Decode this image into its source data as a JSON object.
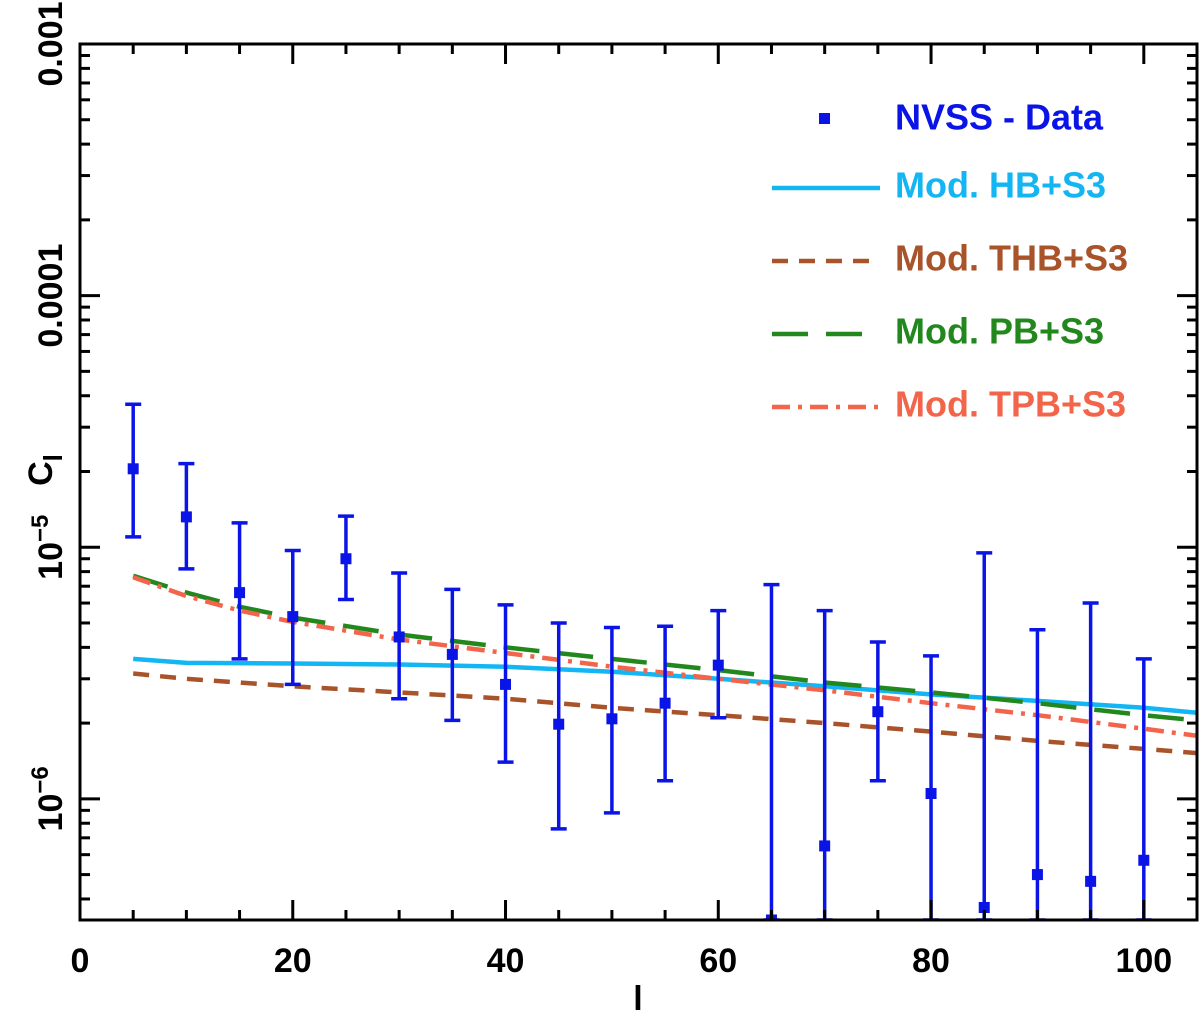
{
  "chart_data": {
    "type": "scatter",
    "title": "",
    "xlabel": "l",
    "ylabel": "C_l",
    "ylabel_main": "C",
    "ylabel_sub": "l",
    "xlim": [
      0,
      105
    ],
    "ylim": [
      3.3e-07,
      0.001
    ],
    "yscale": "log",
    "x_ticks": [
      0,
      20,
      40,
      60,
      80,
      100
    ],
    "x_tick_labels": [
      "0",
      "20",
      "40",
      "60",
      "80",
      "100"
    ],
    "y_ticks": [
      1e-06,
      1e-05,
      0.0001,
      0.001
    ],
    "y_tick_labels": [
      {
        "base": "10",
        "exp": "−6"
      },
      {
        "base": "10",
        "exp": "−5"
      },
      {
        "base": "0.0001",
        "exp": ""
      },
      {
        "base": "0.001",
        "exp": ""
      }
    ],
    "legend_position": "top-right",
    "data_series": {
      "name": "NVSS - Data",
      "color": "#0a14e6",
      "points": [
        {
          "x": 5,
          "y": 2.05e-05,
          "lo": 1.1e-05,
          "hi": 3.7e-05
        },
        {
          "x": 10,
          "y": 1.32e-05,
          "lo": 8.2e-06,
          "hi": 2.15e-05
        },
        {
          "x": 15,
          "y": 6.6e-06,
          "lo": 3.6e-06,
          "hi": 1.25e-05
        },
        {
          "x": 20,
          "y": 5.3e-06,
          "lo": 2.85e-06,
          "hi": 9.7e-06
        },
        {
          "x": 25,
          "y": 9e-06,
          "lo": 6.2e-06,
          "hi": 1.33e-05
        },
        {
          "x": 30,
          "y": 4.4e-06,
          "lo": 2.5e-06,
          "hi": 7.9e-06
        },
        {
          "x": 35,
          "y": 3.75e-06,
          "lo": 2.05e-06,
          "hi": 6.8e-06
        },
        {
          "x": 40,
          "y": 2.85e-06,
          "lo": 1.4e-06,
          "hi": 5.9e-06
        },
        {
          "x": 45,
          "y": 1.98e-06,
          "lo": 7.6e-07,
          "hi": 5e-06
        },
        {
          "x": 50,
          "y": 2.08e-06,
          "lo": 8.8e-07,
          "hi": 4.8e-06
        },
        {
          "x": 55,
          "y": 2.4e-06,
          "lo": 1.18e-06,
          "hi": 4.85e-06
        },
        {
          "x": 60,
          "y": 3.4e-06,
          "lo": 2.1e-06,
          "hi": 5.6e-06
        },
        {
          "x": 65,
          "y": 3.3e-07,
          "lo": 3.3e-07,
          "hi": 7.1e-06
        },
        {
          "x": 70,
          "y": 6.5e-07,
          "lo": 3.3e-07,
          "hi": 5.6e-06
        },
        {
          "x": 75,
          "y": 2.22e-06,
          "lo": 1.18e-06,
          "hi": 4.2e-06
        },
        {
          "x": 80,
          "y": 1.05e-06,
          "lo": 3.3e-07,
          "hi": 3.7e-06
        },
        {
          "x": 85,
          "y": 3.7e-07,
          "lo": 3.3e-07,
          "hi": 9.5e-06
        },
        {
          "x": 90,
          "y": 5e-07,
          "lo": 3.3e-07,
          "hi": 4.7e-06
        },
        {
          "x": 95,
          "y": 4.7e-07,
          "lo": 3.3e-07,
          "hi": 6e-06
        },
        {
          "x": 100,
          "y": 5.7e-07,
          "lo": 3.3e-07,
          "hi": 3.6e-06
        }
      ]
    },
    "series": [
      {
        "name": "Mod. HB+S3",
        "color": "#13b6f2",
        "dash": "solid",
        "x": [
          5,
          10,
          20,
          30,
          40,
          50,
          60,
          70,
          80,
          90,
          100,
          105
        ],
        "y": [
          3.6e-06,
          3.47e-06,
          3.45e-06,
          3.42e-06,
          3.35e-06,
          3.2e-06,
          3e-06,
          2.8e-06,
          2.6e-06,
          2.45e-06,
          2.3e-06,
          2.2e-06
        ]
      },
      {
        "name": "Mod. THB+S3",
        "color": "#a8532a",
        "dash": "short",
        "x": [
          5,
          10,
          20,
          30,
          40,
          50,
          60,
          70,
          80,
          90,
          100,
          105
        ],
        "y": [
          3.15e-06,
          3e-06,
          2.8e-06,
          2.65e-06,
          2.5e-06,
          2.3e-06,
          2.15e-06,
          2e-06,
          1.85e-06,
          1.7e-06,
          1.58e-06,
          1.52e-06
        ]
      },
      {
        "name": "Mod. PB+S3",
        "color": "#22881e",
        "dash": "long",
        "x": [
          5,
          10,
          15,
          20,
          30,
          40,
          50,
          60,
          70,
          80,
          90,
          100,
          105
        ],
        "y": [
          7.7e-06,
          6.6e-06,
          5.8e-06,
          5.25e-06,
          4.5e-06,
          4e-06,
          3.6e-06,
          3.25e-06,
          2.9e-06,
          2.65e-06,
          2.4e-06,
          2.15e-06,
          2.05e-06
        ]
      },
      {
        "name": "Mod. TPB+S3",
        "color": "#f2654a",
        "dash": "dashdot",
        "x": [
          5,
          10,
          15,
          20,
          30,
          40,
          50,
          60,
          70,
          80,
          90,
          100,
          105
        ],
        "y": [
          7.6e-06,
          6.4e-06,
          5.6e-06,
          5.05e-06,
          4.3e-06,
          3.8e-06,
          3.35e-06,
          3e-06,
          2.7e-06,
          2.4e-06,
          2.15e-06,
          1.9e-06,
          1.78e-06
        ]
      }
    ]
  }
}
